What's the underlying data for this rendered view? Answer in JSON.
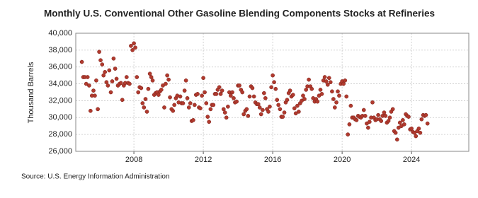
{
  "chart_data": {
    "type": "scatter",
    "title": "Monthly U.S. Conventional Other Gasoline Blending Components Stocks at Refineries",
    "y_label": "Thousand Barrels",
    "source": "Source: U.S. Energy Information Administration",
    "color": "#b03a2e",
    "grid": true,
    "xlim": [
      2004.65,
      2027.3
    ],
    "xticks": [
      2008,
      2012,
      2016,
      2020,
      2024
    ],
    "ylim": [
      26000,
      40000
    ],
    "yticks": [
      {
        "value": 26000,
        "label": "26,000"
      },
      {
        "value": 28000,
        "label": "28,000"
      },
      {
        "value": 30000,
        "label": "30,000"
      },
      {
        "value": 32000,
        "label": "32,000"
      },
      {
        "value": 34000,
        "label": "34,000"
      },
      {
        "value": 36000,
        "label": "36,000"
      },
      {
        "value": 38000,
        "label": "38,000"
      },
      {
        "value": 40000,
        "label": "40,000"
      }
    ],
    "x": [
      2005.0,
      2005.08,
      2005.17,
      2005.25,
      2005.33,
      2005.42,
      2005.5,
      2005.58,
      2005.67,
      2005.75,
      2005.83,
      2005.92,
      2006.0,
      2006.08,
      2006.17,
      2006.25,
      2006.33,
      2006.42,
      2006.5,
      2006.58,
      2006.67,
      2006.75,
      2006.83,
      2006.92,
      2007.0,
      2007.08,
      2007.17,
      2007.25,
      2007.33,
      2007.42,
      2007.5,
      2007.58,
      2007.67,
      2007.75,
      2007.83,
      2007.92,
      2008.0,
      2008.08,
      2008.17,
      2008.25,
      2008.33,
      2008.42,
      2008.5,
      2008.58,
      2008.67,
      2008.75,
      2008.83,
      2008.92,
      2009.0,
      2009.08,
      2009.17,
      2009.25,
      2009.33,
      2009.42,
      2009.5,
      2009.58,
      2009.67,
      2009.75,
      2009.83,
      2009.92,
      2010.0,
      2010.08,
      2010.17,
      2010.25,
      2010.33,
      2010.42,
      2010.5,
      2010.58,
      2010.67,
      2010.75,
      2010.83,
      2010.92,
      2011.0,
      2011.08,
      2011.17,
      2011.25,
      2011.33,
      2011.42,
      2011.5,
      2011.58,
      2011.67,
      2011.75,
      2011.83,
      2011.92,
      2012.0,
      2012.08,
      2012.17,
      2012.25,
      2012.33,
      2012.42,
      2012.5,
      2012.58,
      2012.67,
      2012.75,
      2012.83,
      2012.92,
      2013.0,
      2013.08,
      2013.17,
      2013.25,
      2013.33,
      2013.42,
      2013.5,
      2013.58,
      2013.67,
      2013.75,
      2013.83,
      2013.92,
      2014.0,
      2014.08,
      2014.17,
      2014.25,
      2014.33,
      2014.42,
      2014.5,
      2014.58,
      2014.67,
      2014.75,
      2014.83,
      2014.92,
      2015.0,
      2015.08,
      2015.17,
      2015.25,
      2015.33,
      2015.42,
      2015.5,
      2015.58,
      2015.67,
      2015.75,
      2015.83,
      2015.92,
      2016.0,
      2016.08,
      2016.17,
      2016.25,
      2016.33,
      2016.42,
      2016.5,
      2016.58,
      2016.67,
      2016.75,
      2016.83,
      2016.92,
      2017.0,
      2017.08,
      2017.17,
      2017.25,
      2017.33,
      2017.42,
      2017.5,
      2017.58,
      2017.67,
      2017.75,
      2017.83,
      2017.92,
      2018.0,
      2018.08,
      2018.17,
      2018.25,
      2018.33,
      2018.42,
      2018.5,
      2018.58,
      2018.67,
      2018.75,
      2018.83,
      2018.92,
      2019.0,
      2019.08,
      2019.17,
      2019.25,
      2019.33,
      2019.42,
      2019.5,
      2019.58,
      2019.67,
      2019.75,
      2019.83,
      2019.92,
      2020.0,
      2020.08,
      2020.17,
      2020.25,
      2020.33,
      2020.42,
      2020.5,
      2020.58,
      2020.67,
      2020.75,
      2020.83,
      2020.92,
      2021.0,
      2021.08,
      2021.17,
      2021.25,
      2021.33,
      2021.42,
      2021.5,
      2021.58,
      2021.67,
      2021.75,
      2021.83,
      2021.92,
      2022.0,
      2022.08,
      2022.17,
      2022.25,
      2022.33,
      2022.42,
      2022.5,
      2022.58,
      2022.67,
      2022.75,
      2022.83,
      2022.92,
      2023.0,
      2023.08,
      2023.17,
      2023.25,
      2023.33,
      2023.42,
      2023.5,
      2023.58,
      2023.67,
      2023.75,
      2023.83,
      2023.92,
      2024.0,
      2024.08,
      2024.17,
      2024.25,
      2024.33,
      2024.42,
      2024.5,
      2024.58,
      2024.67,
      2024.75,
      2024.83,
      2024.92
    ],
    "values": [
      36600,
      34800,
      34800,
      34000,
      34800,
      33800,
      30800,
      32600,
      33200,
      32600,
      34400,
      31000,
      37800,
      36800,
      36300,
      35000,
      35400,
      34200,
      33800,
      35600,
      33000,
      34300,
      37000,
      35800,
      34600,
      33800,
      34000,
      34100,
      32100,
      33800,
      34100,
      34800,
      34100,
      34000,
      38500,
      38000,
      38800,
      38300,
      34800,
      33000,
      33600,
      33500,
      31700,
      31200,
      32200,
      30700,
      33400,
      35200,
      34800,
      34400,
      32700,
      32900,
      33000,
      32700,
      33100,
      33300,
      33800,
      31200,
      34000,
      35000,
      34500,
      32400,
      31000,
      30800,
      31500,
      32300,
      32600,
      31800,
      32500,
      31700,
      31700,
      33200,
      34400,
      32300,
      31200,
      31700,
      29600,
      29700,
      31500,
      32700,
      32800,
      31200,
      31100,
      32600,
      34700,
      33000,
      31700,
      30100,
      29500,
      31000,
      31500,
      31500,
      32800,
      32800,
      33300,
      33600,
      32800,
      33200,
      31000,
      30600,
      30000,
      31300,
      33000,
      32600,
      33000,
      32300,
      31800,
      31900,
      33800,
      33800,
      33300,
      33000,
      30400,
      30800,
      31000,
      30200,
      32500,
      33700,
      33500,
      32500,
      31800,
      31600,
      31600,
      31200,
      30400,
      30900,
      32900,
      32300,
      31000,
      30700,
      31300,
      33600,
      35000,
      34200,
      33400,
      32100,
      31500,
      31000,
      30100,
      30100,
      30600,
      31800,
      32100,
      32900,
      33200,
      32500,
      32700,
      31100,
      30500,
      31400,
      30700,
      31700,
      32000,
      32600,
      32200,
      33300,
      33700,
      34500,
      33700,
      33400,
      32300,
      31900,
      32200,
      31900,
      32600,
      33300,
      32800,
      34400,
      34800,
      34300,
      33900,
      34700,
      34200,
      33100,
      32200,
      31200,
      31800,
      33100,
      32600,
      34000,
      34300,
      34000,
      34400,
      32500,
      28000,
      29200,
      31400,
      30000,
      30000,
      29800,
      29700,
      30200,
      30100,
      30000,
      30200,
      30900,
      30200,
      29300,
      28800,
      29500,
      30000,
      31800,
      30000,
      29700,
      29800,
      30300,
      29800,
      29600,
      30200,
      30600,
      30200,
      29400,
      29600,
      30000,
      30700,
      31000,
      28400,
      28200,
      27400,
      28800,
      29400,
      29000,
      29700,
      29200,
      30400,
      30200,
      30100,
      28600,
      28700,
      28300,
      28200,
      27800,
      28400,
      28700,
      28200,
      29800,
      30300,
      30200,
      30300,
      29300
    ]
  }
}
